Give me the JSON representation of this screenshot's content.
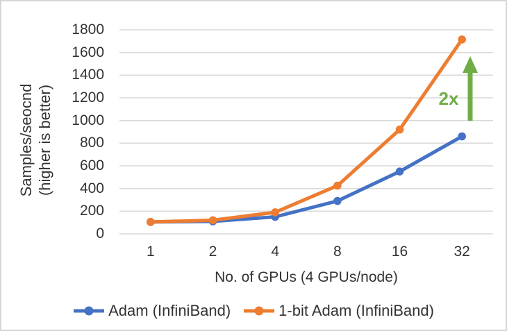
{
  "frame": {
    "background": "#ffffff",
    "border_color": "#d6d6d6"
  },
  "chart_data": {
    "type": "line",
    "title": "",
    "categories": [
      "1",
      "2",
      "4",
      "8",
      "16",
      "32"
    ],
    "x_axis_label": "No. of GPUs (4 GPUs/node)",
    "y_axis_label_line1": "Samples/seocnd",
    "y_axis_label_line2": "(higher is better)",
    "ylim": [
      0,
      1800
    ],
    "ytick_step": 200,
    "ytick_labels": [
      "0",
      "200",
      "400",
      "600",
      "800",
      "1000",
      "1200",
      "1400",
      "1600",
      "1800"
    ],
    "grid": true,
    "gridline_color": "#d9d9d9",
    "axis_line_color": "#d9d9d9",
    "axis_text_color": "#333333",
    "legend_position": "bottom",
    "series": [
      {
        "name": "Adam (InfiniBand)",
        "color": "#4472C4",
        "marker": "circle",
        "values": [
          105,
          110,
          150,
          290,
          550,
          860
        ]
      },
      {
        "name": "1-bit Adam (InfiniBand)",
        "color": "#ED7D31",
        "marker": "circle",
        "values": [
          105,
          120,
          190,
          425,
          920,
          1715
        ]
      }
    ],
    "annotation": {
      "text": "2x",
      "color": "#70AD47",
      "icon": "up-arrow"
    }
  }
}
